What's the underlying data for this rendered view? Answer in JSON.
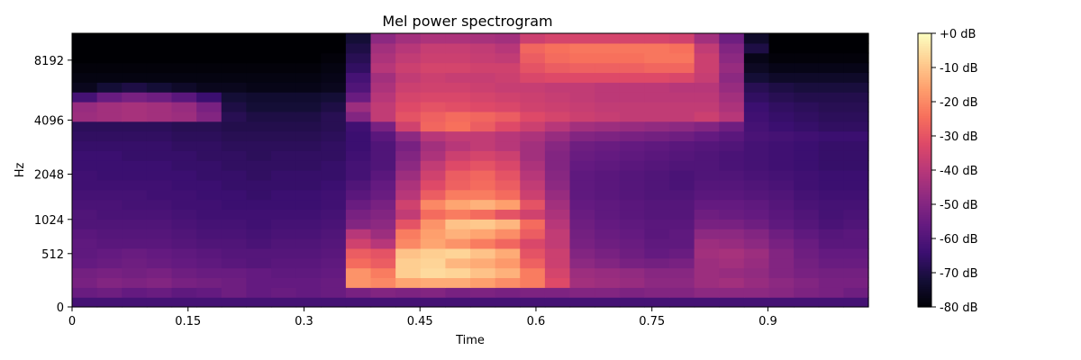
{
  "chart_data": {
    "type": "heatmap",
    "title": "Mel power spectrogram",
    "xlabel": "Time",
    "ylabel": "Hz",
    "x_ticks": [
      "0",
      "0.15",
      "0.3",
      "0.45",
      "0.6",
      "0.75",
      "0.9"
    ],
    "x_tick_values": [
      0,
      0.15,
      0.3,
      0.45,
      0.6,
      0.75,
      0.9
    ],
    "xlim": [
      0,
      1.03
    ],
    "y_ticks": [
      "0",
      "512",
      "1024",
      "2048",
      "4096",
      "8192"
    ],
    "y_tick_values": [
      0,
      512,
      1024,
      2048,
      4096,
      8192
    ],
    "y_scale": "mel",
    "ylim": [
      0,
      11025
    ],
    "colorbar": {
      "label_ticks": [
        "+0 dB",
        "-10 dB",
        "-20 dB",
        "-30 dB",
        "-40 dB",
        "-50 dB",
        "-60 dB",
        "-70 dB",
        "-80 dB"
      ],
      "tick_values": [
        0,
        -10,
        -20,
        -30,
        -40,
        -50,
        -60,
        -70,
        -80
      ],
      "range": [
        -80,
        0
      ],
      "colormap": "magma"
    },
    "time_frames": 32,
    "mel_bands": 28,
    "grid": false,
    "power_db_estimate": {
      "description_free_note": "",
      "rows_low_to_high_frequency": [
        [
          -62,
          -62,
          -62,
          -62,
          -62,
          -62,
          -62,
          -62,
          -62,
          -62,
          -62,
          -62,
          -62,
          -62,
          -62,
          -62,
          -62,
          -62,
          -62,
          -62,
          -62,
          -62,
          -62,
          -62,
          -62,
          -62,
          -62,
          -62,
          -62,
          -62,
          -62,
          -62
        ],
        [
          -55,
          -54,
          -56,
          -55,
          -57,
          -56,
          -54,
          -56,
          -55,
          -56,
          -55,
          -52,
          -50,
          -51,
          -50,
          -52,
          -51,
          -52,
          -51,
          -51,
          -50,
          -50,
          -51,
          -50,
          -50,
          -48,
          -48,
          -48,
          -49,
          -51,
          -52,
          -54
        ],
        [
          -52,
          -50,
          -51,
          -50,
          -52,
          -53,
          -54,
          -56,
          -56,
          -56,
          -55,
          -18,
          -20,
          -15,
          -14,
          -14,
          -16,
          -19,
          -22,
          -32,
          -44,
          -45,
          -46,
          -48,
          -48,
          -45,
          -44,
          -46,
          -48,
          -50,
          -52,
          -52
        ],
        [
          -53,
          -52,
          -53,
          -52,
          -54,
          -55,
          -55,
          -56,
          -57,
          -57,
          -56,
          -18,
          -22,
          -8,
          -6,
          -7,
          -10,
          -13,
          -22,
          -34,
          -45,
          -46,
          -47,
          -49,
          -49,
          -45,
          -46,
          -47,
          -50,
          -52,
          -53,
          -53
        ],
        [
          -56,
          -55,
          -54,
          -55,
          -56,
          -57,
          -58,
          -59,
          -58,
          -58,
          -57,
          -25,
          -28,
          -8,
          -7,
          -12,
          -14,
          -17,
          -27,
          -36,
          -48,
          -50,
          -52,
          -53,
          -52,
          -45,
          -44,
          -46,
          -50,
          -53,
          -55,
          -55
        ],
        [
          -57,
          -56,
          -55,
          -56,
          -57,
          -58,
          -59,
          -59,
          -59,
          -59,
          -58,
          -28,
          -30,
          -10,
          -8,
          -7,
          -10,
          -14,
          -30,
          -36,
          -50,
          -52,
          -54,
          -56,
          -55,
          -44,
          -43,
          -45,
          -50,
          -54,
          -56,
          -56
        ],
        [
          -57,
          -58,
          -58,
          -58,
          -59,
          -60,
          -60,
          -61,
          -60,
          -60,
          -59,
          -35,
          -40,
          -20,
          -15,
          -18,
          -22,
          -26,
          -33,
          -38,
          -52,
          -54,
          -55,
          -57,
          -57,
          -45,
          -46,
          -48,
          -52,
          -55,
          -58,
          -58
        ],
        [
          -58,
          -59,
          -59,
          -59,
          -60,
          -61,
          -61,
          -62,
          -61,
          -61,
          -60,
          -40,
          -45,
          -22,
          -16,
          -13,
          -15,
          -19,
          -28,
          -38,
          -53,
          -55,
          -56,
          -58,
          -57,
          -48,
          -48,
          -50,
          -54,
          -57,
          -59,
          -58
        ],
        [
          -60,
          -60,
          -60,
          -60,
          -61,
          -62,
          -62,
          -63,
          -62,
          -62,
          -61,
          -50,
          -48,
          -30,
          -18,
          -10,
          -9,
          -12,
          -25,
          -40,
          -54,
          -56,
          -57,
          -58,
          -58,
          -52,
          -52,
          -54,
          -57,
          -59,
          -61,
          -60
        ],
        [
          -60,
          -61,
          -61,
          -61,
          -62,
          -63,
          -63,
          -63,
          -63,
          -63,
          -62,
          -52,
          -50,
          -38,
          -25,
          -22,
          -25,
          -30,
          -35,
          -42,
          -55,
          -57,
          -58,
          -59,
          -59,
          -54,
          -55,
          -56,
          -58,
          -60,
          -62,
          -61
        ],
        [
          -61,
          -61,
          -62,
          -62,
          -63,
          -63,
          -64,
          -64,
          -64,
          -64,
          -63,
          -55,
          -52,
          -35,
          -20,
          -15,
          -13,
          -16,
          -30,
          -44,
          -56,
          -57,
          -58,
          -59,
          -59,
          -56,
          -56,
          -57,
          -59,
          -61,
          -62,
          -62
        ],
        [
          -62,
          -62,
          -62,
          -63,
          -63,
          -64,
          -64,
          -65,
          -64,
          -64,
          -63,
          -58,
          -55,
          -40,
          -28,
          -22,
          -22,
          -25,
          -36,
          -46,
          -57,
          -58,
          -59,
          -60,
          -60,
          -58,
          -58,
          -59,
          -60,
          -62,
          -63,
          -63
        ],
        [
          -63,
          -63,
          -63,
          -63,
          -64,
          -64,
          -65,
          -65,
          -65,
          -65,
          -64,
          -60,
          -56,
          -42,
          -32,
          -27,
          -25,
          -28,
          -38,
          -48,
          -57,
          -58,
          -59,
          -60,
          -61,
          -59,
          -59,
          -60,
          -61,
          -63,
          -64,
          -64
        ],
        [
          -63,
          -64,
          -64,
          -64,
          -64,
          -65,
          -65,
          -66,
          -65,
          -65,
          -65,
          -62,
          -58,
          -45,
          -35,
          -28,
          -26,
          -30,
          -40,
          -49,
          -57,
          -58,
          -59,
          -60,
          -61,
          -60,
          -60,
          -61,
          -62,
          -63,
          -64,
          -64
        ],
        [
          -64,
          -64,
          -64,
          -64,
          -65,
          -65,
          -66,
          -66,
          -66,
          -66,
          -65,
          -62,
          -60,
          -48,
          -38,
          -32,
          -30,
          -33,
          -42,
          -50,
          -56,
          -57,
          -58,
          -59,
          -60,
          -60,
          -61,
          -62,
          -63,
          -64,
          -65,
          -65
        ],
        [
          -64,
          -64,
          -65,
          -65,
          -65,
          -66,
          -66,
          -67,
          -66,
          -66,
          -66,
          -63,
          -60,
          -50,
          -42,
          -36,
          -34,
          -36,
          -44,
          -50,
          -55,
          -56,
          -57,
          -58,
          -59,
          -60,
          -61,
          -62,
          -63,
          -64,
          -65,
          -65
        ],
        [
          -65,
          -65,
          -65,
          -65,
          -66,
          -66,
          -67,
          -67,
          -67,
          -67,
          -66,
          -64,
          -60,
          -52,
          -44,
          -40,
          -38,
          -40,
          -44,
          -49,
          -54,
          -55,
          -56,
          -57,
          -58,
          -59,
          -60,
          -62,
          -63,
          -64,
          -65,
          -65
        ],
        [
          -66,
          -66,
          -66,
          -66,
          -67,
          -67,
          -68,
          -68,
          -68,
          -68,
          -67,
          -64,
          -58,
          -48,
          -40,
          -38,
          -38,
          -40,
          -42,
          -46,
          -50,
          -51,
          -52,
          -53,
          -54,
          -56,
          -58,
          -61,
          -62,
          -63,
          -64,
          -64
        ],
        [
          -67,
          -67,
          -67,
          -67,
          -68,
          -68,
          -69,
          -69,
          -69,
          -69,
          -68,
          -63,
          -52,
          -35,
          -26,
          -24,
          -28,
          -32,
          -36,
          -40,
          -44,
          -45,
          -46,
          -47,
          -48,
          -50,
          -54,
          -62,
          -64,
          -65,
          -66,
          -66
        ],
        [
          -45,
          -44,
          -43,
          -44,
          -45,
          -50,
          -68,
          -70,
          -70,
          -70,
          -68,
          -50,
          -38,
          -30,
          -27,
          -25,
          -26,
          -28,
          -32,
          -34,
          -36,
          -37,
          -38,
          -38,
          -38,
          -36,
          -40,
          -63,
          -65,
          -66,
          -67,
          -67
        ],
        [
          -46,
          -44,
          -43,
          -44,
          -46,
          -52,
          -70,
          -72,
          -72,
          -72,
          -70,
          -45,
          -38,
          -32,
          -30,
          -31,
          -32,
          -33,
          -35,
          -36,
          -37,
          -38,
          -38,
          -38,
          -38,
          -38,
          -42,
          -64,
          -66,
          -67,
          -68,
          -68
        ],
        [
          -62,
          -55,
          -52,
          -54,
          -58,
          -64,
          -72,
          -73,
          -73,
          -73,
          -72,
          -55,
          -40,
          -34,
          -33,
          -33,
          -34,
          -35,
          -36,
          -37,
          -38,
          -39,
          -39,
          -39,
          -39,
          -39,
          -44,
          -66,
          -68,
          -69,
          -69,
          -69
        ],
        [
          -76,
          -72,
          -70,
          -72,
          -74,
          -76,
          -76,
          -77,
          -77,
          -77,
          -76,
          -60,
          -42,
          -36,
          -35,
          -35,
          -36,
          -37,
          -37,
          -38,
          -38,
          -39,
          -39,
          -39,
          -40,
          -40,
          -46,
          -68,
          -70,
          -71,
          -71,
          -71
        ],
        [
          -78,
          -78,
          -78,
          -78,
          -78,
          -78,
          -78,
          -78,
          -78,
          -78,
          -77,
          -62,
          -44,
          -38,
          -36,
          -37,
          -37,
          -36,
          -33,
          -32,
          -32,
          -32,
          -32,
          -32,
          -33,
          -37,
          -48,
          -72,
          -74,
          -74,
          -74,
          -74
        ],
        [
          -79,
          -79,
          -79,
          -79,
          -79,
          -79,
          -79,
          -79,
          -79,
          -79,
          -78,
          -66,
          -40,
          -36,
          -34,
          -34,
          -35,
          -35,
          -30,
          -28,
          -27,
          -27,
          -27,
          -26,
          -26,
          -36,
          -46,
          -75,
          -77,
          -77,
          -77,
          -77
        ],
        [
          -80,
          -80,
          -80,
          -80,
          -80,
          -80,
          -80,
          -80,
          -80,
          -80,
          -79,
          -68,
          -42,
          -38,
          -36,
          -36,
          -37,
          -38,
          -28,
          -25,
          -24,
          -24,
          -24,
          -23,
          -23,
          -36,
          -48,
          -77,
          -79,
          -79,
          -79,
          -79
        ],
        [
          -80,
          -80,
          -80,
          -80,
          -80,
          -80,
          -80,
          -80,
          -80,
          -80,
          -80,
          -70,
          -44,
          -40,
          -37,
          -37,
          -38,
          -40,
          -26,
          -24,
          -23,
          -23,
          -23,
          -23,
          -24,
          -38,
          -50,
          -70,
          -80,
          -80,
          -80,
          -80
        ],
        [
          -80,
          -80,
          -80,
          -80,
          -80,
          -80,
          -80,
          -80,
          -80,
          -80,
          -80,
          -72,
          -48,
          -44,
          -42,
          -42,
          -43,
          -44,
          -36,
          -34,
          -34,
          -34,
          -34,
          -34,
          -35,
          -44,
          -54,
          -74,
          -80,
          -80,
          -80,
          -80
        ]
      ]
    }
  }
}
